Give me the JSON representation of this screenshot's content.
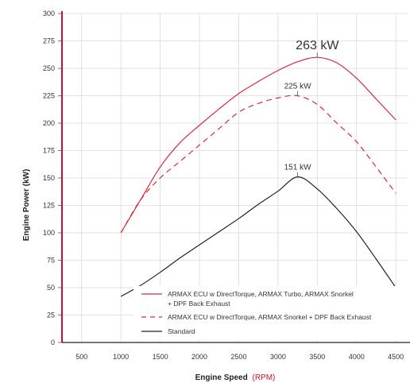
{
  "chart_data": {
    "type": "line",
    "xlabel": "Engine Speed",
    "xunit": "(RPM)",
    "ylabel": "Engine Power (kW)",
    "xlim": [
      250,
      4650
    ],
    "ylim": [
      0,
      300
    ],
    "xticks": [
      500,
      1000,
      1500,
      2000,
      2500,
      3000,
      3500,
      4000,
      4500
    ],
    "yticks": [
      0,
      25,
      50,
      75,
      100,
      125,
      150,
      175,
      200,
      225,
      250,
      275,
      300
    ],
    "grid": true,
    "legend_position": "bottom-right",
    "colors": {
      "axis": "#c8102e",
      "red": "#d42a3c",
      "black": "#222222",
      "grid": "#d9d9d9"
    },
    "series": [
      {
        "name": "ARMAX ECU w DirectTorque, ARMAX Turbo, ARMAX Snorkel",
        "name_line2": "+ DPF Back Exhaust",
        "color": "#d42a3c",
        "style": "solid",
        "peak_label": "263 kW",
        "peak_x": 3500,
        "peak_y": 260,
        "x": [
          1000,
          1250,
          1500,
          1750,
          2000,
          2250,
          2500,
          2750,
          3000,
          3250,
          3500,
          3750,
          4000,
          4250,
          4500
        ],
        "y": [
          100,
          130,
          160,
          182,
          198,
          213,
          227,
          238,
          248,
          256,
          260,
          255,
          241,
          222,
          203
        ]
      },
      {
        "name": "ARMAX ECU w DirectTorque, ARMAX Snorkel + DPF Back Exhaust",
        "color": "#d42a3c",
        "style": "dashed",
        "peak_label": "225 kW",
        "peak_x": 3250,
        "peak_y": 225,
        "x": [
          1000,
          1250,
          1500,
          1750,
          2000,
          2250,
          2500,
          2750,
          3000,
          3250,
          3500,
          3750,
          4000,
          4250,
          4500
        ],
        "y": [
          100,
          130,
          150,
          165,
          180,
          195,
          210,
          218,
          223,
          225,
          217,
          200,
          183,
          160,
          136
        ]
      },
      {
        "name": "Standard",
        "color": "#222222",
        "style": "solid",
        "peak_label": "151 kW",
        "peak_x": 3250,
        "peak_y": 151,
        "x": [
          1000,
          1250,
          1500,
          1750,
          2000,
          2250,
          2500,
          2750,
          3000,
          3250,
          3500,
          3750,
          4000,
          4250,
          4500
        ],
        "y": [
          42,
          52,
          64,
          77,
          89,
          101,
          113,
          126,
          138,
          151,
          140,
          122,
          101,
          76,
          50
        ]
      }
    ]
  }
}
